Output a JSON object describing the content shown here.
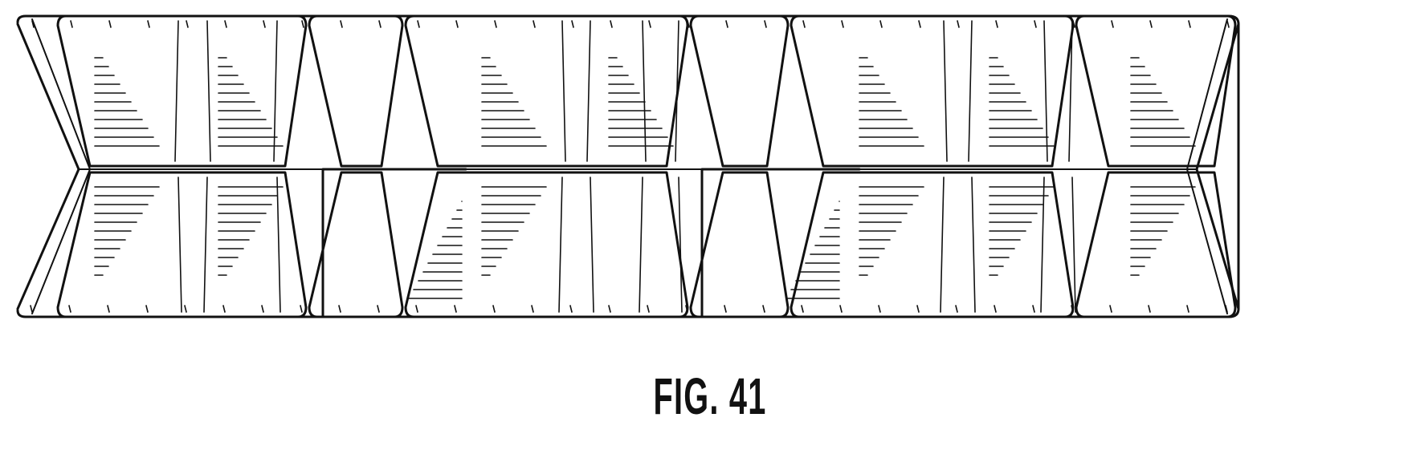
{
  "figure": {
    "label": "FIG. 41"
  },
  "colors": {
    "ink": "#111111",
    "paper": "#ffffff"
  }
}
